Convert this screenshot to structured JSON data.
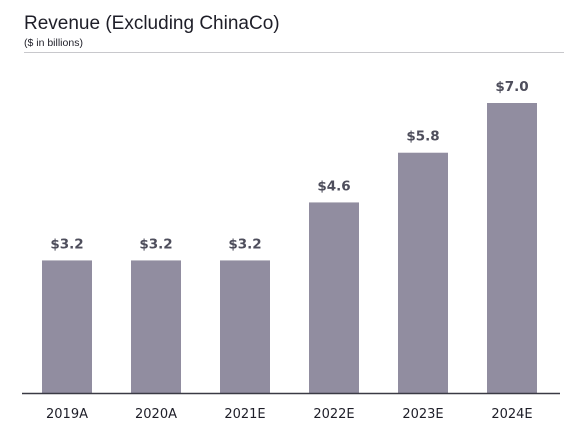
{
  "colors": {
    "bar": "#918da0",
    "baseline": "#3a3a44",
    "rule": "#c8c8cc"
  },
  "chart_data": {
    "type": "bar",
    "title": "Revenue (Excluding ChinaCo)",
    "subtitle": "($ in billions)",
    "xlabel": "",
    "ylabel": "",
    "ylim": [
      0,
      7.0
    ],
    "grid": false,
    "legend": "none",
    "categories": [
      "2019A",
      "2020A",
      "2021E",
      "2022E",
      "2023E",
      "2024E"
    ],
    "values": [
      3.2,
      3.2,
      3.2,
      4.6,
      5.8,
      7.0
    ],
    "data_labels": [
      "$3.2",
      "$3.2",
      "$3.2",
      "$4.6",
      "$5.8",
      "$7.0"
    ]
  }
}
